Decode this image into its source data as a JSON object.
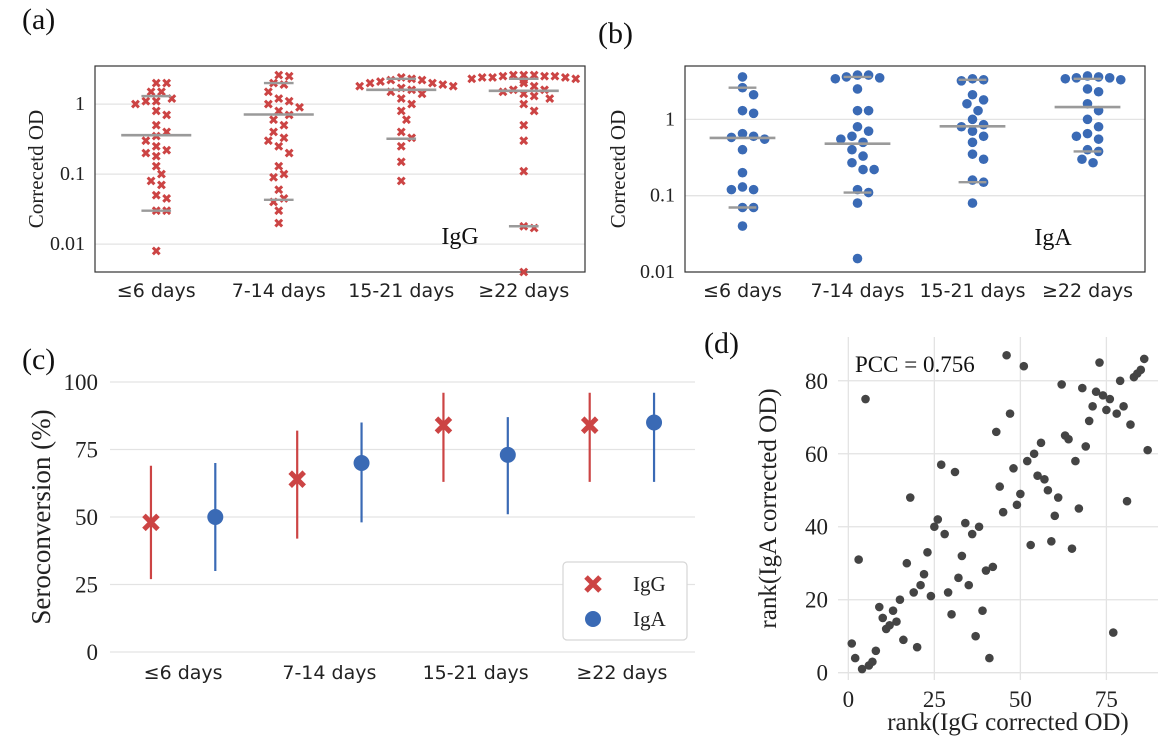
{
  "chart_data": [
    {
      "panel": "(a)",
      "type": "scatter",
      "marker": "x",
      "color": "#cc4444",
      "annotation": "IgG",
      "ylabel": "Correcetd OD",
      "yscale": "log",
      "ylim": [
        0.004,
        3.5
      ],
      "yticks": [
        {
          "value": 1,
          "label": "1"
        },
        {
          "value": 0.1,
          "label": "0.1"
        },
        {
          "value": 0.01,
          "label": "0.01"
        }
      ],
      "categories": [
        "≤6 days",
        "7-14 days",
        "15-21 days",
        "≥22 days"
      ],
      "points": [
        [
          2.0,
          2.0,
          1.5,
          1.5,
          1.2,
          1.1,
          1.1,
          1.0,
          0.8,
          0.7,
          0.5,
          0.4,
          0.35,
          0.3,
          0.25,
          0.22,
          0.2,
          0.18,
          0.13,
          0.1,
          0.08,
          0.07,
          0.05,
          0.045,
          0.03,
          0.03,
          0.008
        ],
        [
          2.6,
          2.5,
          2.0,
          1.9,
          1.5,
          1.2,
          1.1,
          1.0,
          0.9,
          0.8,
          0.7,
          0.6,
          0.5,
          0.4,
          0.33,
          0.3,
          0.25,
          0.2,
          0.13,
          0.1,
          0.09,
          0.06,
          0.045,
          0.04,
          0.03,
          0.02
        ],
        [
          2.4,
          2.3,
          2.2,
          2.2,
          2.1,
          2.0,
          2.0,
          1.9,
          1.8,
          1.8,
          1.7,
          1.6,
          1.5,
          1.4,
          1.2,
          1.0,
          0.8,
          0.6,
          0.4,
          0.33,
          0.25,
          0.15,
          0.08
        ],
        [
          2.6,
          2.6,
          2.6,
          2.5,
          2.5,
          2.5,
          2.4,
          2.4,
          2.4,
          2.3,
          2.3,
          2.2,
          2.0,
          1.8,
          1.6,
          1.6,
          1.5,
          1.4,
          1.3,
          1.2,
          1.0,
          0.8,
          0.5,
          0.3,
          0.11,
          0.018,
          0.017,
          0.004
        ]
      ],
      "medians": [
        0.36,
        0.71,
        1.6,
        1.55
      ],
      "quartiles": [
        [
          0.03,
          1.3
        ],
        [
          0.043,
          2.0
        ],
        [
          0.32,
          2.3
        ],
        [
          0.018,
          2.3
        ]
      ]
    },
    {
      "panel": "(b)",
      "type": "scatter",
      "marker": "o",
      "color": "#3a6ab5",
      "annotation": "IgA",
      "ylabel": "Correcetd OD",
      "yscale": "log",
      "ylim": [
        0.01,
        5
      ],
      "yticks": [
        {
          "value": 1,
          "label": "1"
        },
        {
          "value": 0.1,
          "label": "0.1"
        },
        {
          "value": 0.01,
          "label": "0.01"
        }
      ],
      "categories": [
        "≤6 days",
        "7-14 days",
        "15-21 days",
        "≥22 days"
      ],
      "points": [
        [
          3.6,
          2.6,
          2.1,
          1.3,
          1.2,
          0.65,
          0.6,
          0.58,
          0.55,
          0.4,
          0.2,
          0.13,
          0.12,
          0.12,
          0.07,
          0.07,
          0.04
        ],
        [
          3.8,
          3.8,
          3.6,
          3.5,
          3.4,
          2.5,
          1.3,
          1.3,
          0.8,
          0.7,
          0.6,
          0.55,
          0.5,
          0.4,
          0.33,
          0.27,
          0.22,
          0.22,
          0.12,
          0.11,
          0.08,
          0.015
        ],
        [
          3.4,
          3.3,
          3.2,
          2.1,
          1.8,
          1.6,
          1.3,
          1.0,
          0.85,
          0.8,
          0.7,
          0.6,
          0.5,
          0.35,
          0.3,
          0.16,
          0.15,
          0.08
        ],
        [
          3.7,
          3.6,
          3.5,
          3.5,
          3.4,
          3.3,
          2.5,
          2.3,
          1.6,
          1.3,
          1.0,
          0.8,
          0.65,
          0.6,
          0.55,
          0.4,
          0.38,
          0.3,
          0.27
        ]
      ],
      "medians": [
        0.57,
        0.48,
        0.81,
        1.45
      ],
      "quartiles": [
        [
          0.07,
          2.6
        ],
        [
          0.11,
          3.6
        ],
        [
          0.15,
          3.3
        ],
        [
          0.38,
          3.4
        ]
      ]
    },
    {
      "panel": "(c)",
      "type": "scatter",
      "ylabel": "Seroconversion (%)",
      "ylim": [
        0,
        100
      ],
      "yticks": [
        0,
        25,
        50,
        75,
        100
      ],
      "categories": [
        "≤6 days",
        "7-14 days",
        "15-21 days",
        "≥22 days"
      ],
      "series": [
        {
          "name": "IgG",
          "color": "#cc4444",
          "marker": "x",
          "values": [
            48,
            64,
            84,
            84
          ],
          "lower": [
            27,
            42,
            63,
            63
          ],
          "upper": [
            69,
            82,
            96,
            96
          ]
        },
        {
          "name": "IgA",
          "color": "#3a6ab5",
          "marker": "o",
          "values": [
            50,
            70,
            73,
            85
          ],
          "lower": [
            30,
            48,
            51,
            63
          ],
          "upper": [
            70,
            85,
            87,
            96
          ]
        }
      ],
      "legend": "bottom-right"
    },
    {
      "panel": "(d)",
      "type": "scatter",
      "color": "#444444",
      "annotation": "PCC = 0.756",
      "xlabel": "rank(IgG corrected OD)",
      "ylabel": "rank(IgA corrected OD)",
      "xlim": [
        -3,
        90
      ],
      "ylim": [
        -2,
        92
      ],
      "xticks": [
        0,
        25,
        50,
        75
      ],
      "yticks": [
        0,
        20,
        40,
        60,
        80
      ],
      "points": [
        [
          1,
          8
        ],
        [
          2,
          4
        ],
        [
          3,
          31
        ],
        [
          4,
          1
        ],
        [
          5,
          75
        ],
        [
          6,
          2
        ],
        [
          7,
          3
        ],
        [
          8,
          6
        ],
        [
          9,
          18
        ],
        [
          10,
          15
        ],
        [
          11,
          12
        ],
        [
          12,
          13
        ],
        [
          13,
          17
        ],
        [
          14,
          14
        ],
        [
          15,
          20
        ],
        [
          16,
          9
        ],
        [
          17,
          30
        ],
        [
          18,
          48
        ],
        [
          19,
          22
        ],
        [
          20,
          7
        ],
        [
          21,
          24
        ],
        [
          22,
          27
        ],
        [
          23,
          33
        ],
        [
          24,
          21
        ],
        [
          25,
          40
        ],
        [
          26,
          42
        ],
        [
          27,
          57
        ],
        [
          28,
          38
        ],
        [
          29,
          22
        ],
        [
          30,
          16
        ],
        [
          31,
          55
        ],
        [
          32,
          26
        ],
        [
          33,
          32
        ],
        [
          34,
          41
        ],
        [
          35,
          24
        ],
        [
          36,
          38
        ],
        [
          37,
          10
        ],
        [
          38,
          40
        ],
        [
          39,
          17
        ],
        [
          40,
          28
        ],
        [
          41,
          4
        ],
        [
          42,
          29
        ],
        [
          43,
          66
        ],
        [
          44,
          51
        ],
        [
          45,
          44
        ],
        [
          46,
          87
        ],
        [
          47,
          71
        ],
        [
          48,
          56
        ],
        [
          49,
          46
        ],
        [
          50,
          49
        ],
        [
          51,
          84
        ],
        [
          52,
          58
        ],
        [
          53,
          35
        ],
        [
          54,
          60
        ],
        [
          55,
          54
        ],
        [
          56,
          63
        ],
        [
          57,
          53
        ],
        [
          58,
          50
        ],
        [
          59,
          36
        ],
        [
          60,
          43
        ],
        [
          61,
          48
        ],
        [
          62,
          79
        ],
        [
          63,
          65
        ],
        [
          64,
          64
        ],
        [
          65,
          34
        ],
        [
          66,
          58
        ],
        [
          67,
          45
        ],
        [
          68,
          78
        ],
        [
          69,
          62
        ],
        [
          70,
          69
        ],
        [
          71,
          73
        ],
        [
          72,
          77
        ],
        [
          73,
          85
        ],
        [
          74,
          76
        ],
        [
          75,
          72
        ],
        [
          76,
          75
        ],
        [
          77,
          11
        ],
        [
          78,
          71
        ],
        [
          79,
          80
        ],
        [
          80,
          73
        ],
        [
          81,
          47
        ],
        [
          82,
          68
        ],
        [
          83,
          81
        ],
        [
          84,
          82
        ],
        [
          85,
          83
        ],
        [
          86,
          86
        ],
        [
          87,
          61
        ]
      ]
    }
  ]
}
